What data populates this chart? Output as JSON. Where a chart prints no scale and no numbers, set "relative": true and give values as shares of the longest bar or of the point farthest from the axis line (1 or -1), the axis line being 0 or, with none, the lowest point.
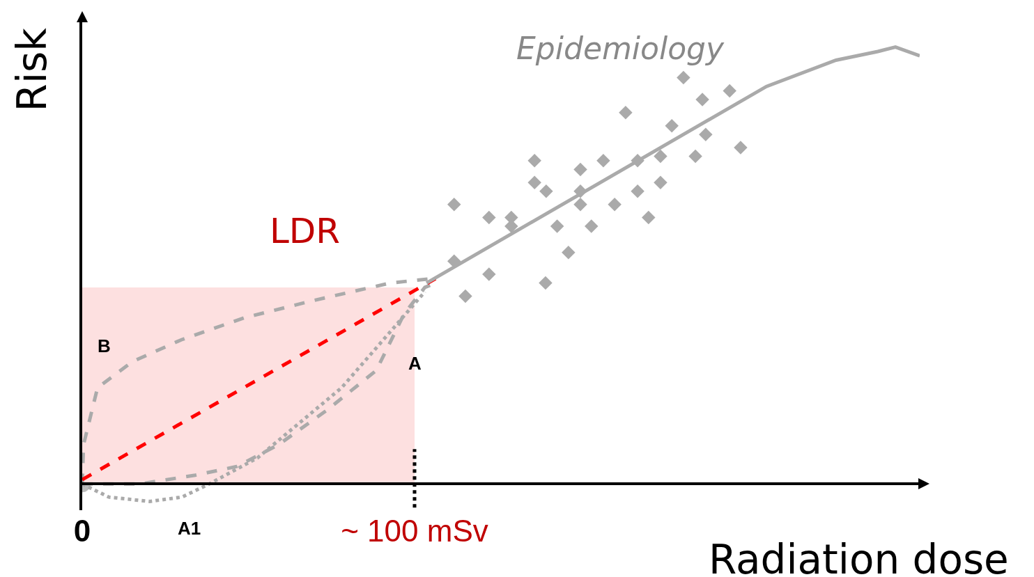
{
  "chart_data": {
    "type": "line",
    "relative": true,
    "xlabel": "Radiation dose",
    "ylabel": "Risk",
    "xlim": [
      0,
      252
    ],
    "xticks": [
      {
        "value": 0,
        "label": "0"
      },
      {
        "value": 100,
        "label": "~ 100 mSv"
      }
    ],
    "annotations": [
      "LDR"
    ],
    "ref_lines": [
      {
        "axis": "x",
        "value": 100,
        "color": "#000000",
        "line_style": "dotted"
      }
    ],
    "series": [
      {
        "type": "scatter",
        "marker": "circle",
        "color": "#bbbbbb",
        "x": [
          0
        ],
        "values": [
          0
        ]
      },
      {
        "type": "area",
        "color": "#fde0e0",
        "x": [
          0,
          100
        ],
        "values": [
          0.45,
          0.45
        ]
      },
      {
        "name": "B",
        "color": "#aaaaaa",
        "line_style": "dashed",
        "x": [
          0,
          0.4,
          4.6,
          15.1,
          29.8,
          48.6,
          69.6,
          92.7,
          105.2
        ],
        "values": [
          0,
          0.09,
          0.22,
          0.28,
          0.33,
          0.38,
          0.42,
          0.46,
          0.47
        ]
      },
      {
        "name": "A",
        "color": "#aaaaaa",
        "line_style": "dashed",
        "x": [
          0,
          17.2,
          34,
          46.5,
          59.1,
          73.8,
          88.5,
          96.9,
          103.1,
          106.3
        ],
        "values": [
          0,
          0.0,
          0.02,
          0.04,
          0.09,
          0.17,
          0.26,
          0.39,
          0.45,
          0.46
        ]
      },
      {
        "name": "A1",
        "color": "#aaaaaa",
        "line_style": "dotted",
        "x": [
          0,
          8,
          20.3,
          30,
          38.2,
          52.8,
          65.4,
          78,
          90.6,
          103.1
        ],
        "values": [
          0,
          -0.03,
          -0.04,
          -0.03,
          0,
          0.06,
          0.14,
          0.22,
          0.33,
          0.44
        ]
      },
      {
        "color": "#ff0000",
        "line_style": "dashed",
        "x": [
          0,
          106.3
        ],
        "values": [
          0.01,
          0.47
        ]
      },
      {
        "name": "Epidemiology",
        "color": "#aaaaaa",
        "line_style": "solid",
        "x": [
          103.6,
          205.9,
          226.8,
          239.4,
          244.7,
          252
        ],
        "values": [
          0.46,
          0.91,
          0.97,
          0.99,
          1,
          0.98
        ]
      },
      {
        "type": "scatter",
        "marker": "diamond",
        "color": "#aaaaaa",
        "x": [
          111.9,
          122.4,
          129.1,
          129.1,
          111.9,
          122.4,
          115.3,
          139.4,
          146.3,
          142.9,
          153.2,
          139.6,
          136.1,
          136.1,
          149.9,
          149.9,
          149.9,
          160.2,
          156.8,
          163.5,
          167.1,
          170.4,
          167.1,
          174.0,
          174.0,
          177.4,
          180.9,
          186.6,
          194.8,
          187.6,
          184.5,
          198.1
        ],
        "values": [
          0.64,
          0.61,
          0.61,
          0.59,
          0.51,
          0.48,
          0.43,
          0.46,
          0.53,
          0.59,
          0.59,
          0.67,
          0.69,
          0.74,
          0.72,
          0.67,
          0.64,
          0.64,
          0.74,
          0.85,
          0.67,
          0.61,
          0.74,
          0.75,
          0.69,
          0.82,
          0.93,
          0.88,
          0.9,
          0.8,
          0.75,
          0.77
        ]
      }
    ]
  }
}
